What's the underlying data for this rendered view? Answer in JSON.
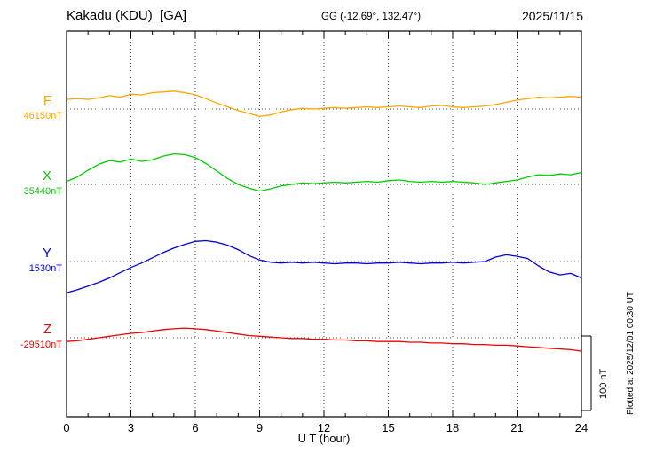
{
  "chart_data": {
    "type": "line",
    "title": "Kakadu (KDU)  [GA]",
    "subtitle": "GG (-12.69°, 132.47°)",
    "date": "2025/11/15",
    "xlabel": "U T (hour)",
    "x_range": [
      0,
      24
    ],
    "x_ticks": [
      0,
      3,
      6,
      9,
      12,
      15,
      18,
      21,
      24
    ],
    "sample_interval_hours": 0.5,
    "grid": "dotted vertical at 3h, dotted horizontal baseline per trace",
    "scale_bar_nT": 100,
    "scale_bar_label": "100 nT",
    "plotted_note": "Plotted at 2025/12/01 00:30 UT",
    "series": [
      {
        "name": "F",
        "baseline_label": "46150nT",
        "baseline_nT": 46150,
        "color": "#FFA500",
        "offsets_nT": [
          13,
          14,
          13,
          15,
          18,
          16,
          20,
          19,
          22,
          23,
          24,
          22,
          19,
          14,
          8,
          3,
          -2,
          -6,
          -10,
          -8,
          -4,
          -1,
          1,
          0,
          1,
          2,
          1,
          2,
          3,
          2,
          3,
          4,
          3,
          2,
          4,
          5,
          3,
          2,
          3,
          4,
          6,
          9,
          12,
          14,
          16,
          15,
          16,
          17,
          16
        ]
      },
      {
        "name": "X",
        "baseline_label": "35440nT",
        "baseline_nT": 35440,
        "color": "#00CC00",
        "offsets_nT": [
          4,
          10,
          19,
          27,
          32,
          30,
          34,
          31,
          33,
          38,
          41,
          40,
          36,
          28,
          18,
          8,
          0,
          -5,
          -9,
          -6,
          -2,
          0,
          2,
          1,
          2,
          3,
          2,
          3,
          4,
          3,
          5,
          6,
          4,
          3,
          4,
          3,
          4,
          3,
          2,
          0,
          2,
          4,
          6,
          10,
          13,
          12,
          14,
          13,
          16
        ]
      },
      {
        "name": "Y",
        "baseline_label": "1530nT",
        "baseline_nT": 1530,
        "color": "#0000DD",
        "offsets_nT": [
          -42,
          -38,
          -33,
          -28,
          -22,
          -15,
          -8,
          -2,
          5,
          12,
          18,
          23,
          27,
          28,
          26,
          22,
          16,
          8,
          2,
          -1,
          -2,
          -1,
          -2,
          -1,
          -2,
          -3,
          -2,
          -2,
          -3,
          -2,
          -2,
          -1,
          -2,
          -3,
          -2,
          -2,
          -1,
          -2,
          -1,
          0,
          6,
          9,
          7,
          4,
          -6,
          -14,
          -18,
          -16,
          -22
        ]
      },
      {
        "name": "Z",
        "baseline_label": "-29510nT",
        "baseline_nT": -29510,
        "color": "#EE0000",
        "offsets_nT": [
          -5,
          -4,
          -2,
          0,
          2,
          4,
          6,
          7,
          9,
          11,
          12,
          13,
          12,
          11,
          9,
          7,
          5,
          3,
          2,
          1,
          0,
          -1,
          -1,
          -2,
          -2,
          -3,
          -3,
          -4,
          -4,
          -5,
          -5,
          -5,
          -6,
          -6,
          -7,
          -7,
          -8,
          -8,
          -9,
          -9,
          -10,
          -10,
          -11,
          -12,
          -13,
          -14,
          -15,
          -16,
          -18
        ]
      }
    ]
  }
}
